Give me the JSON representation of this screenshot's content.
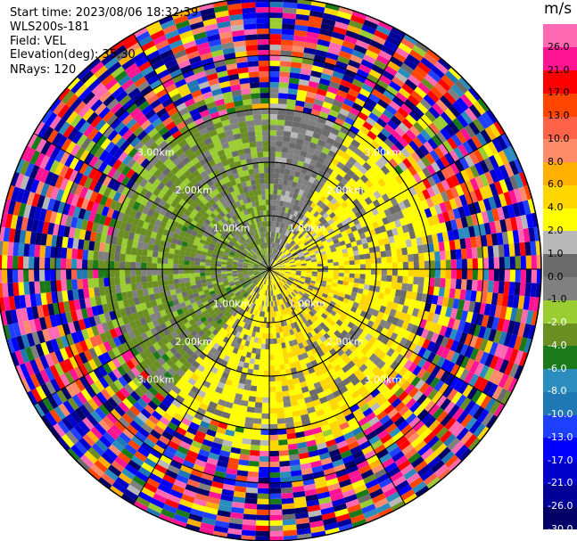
{
  "header": {
    "start_time": "Start time: 2023/08/06 18:32:39",
    "instrument": "WLS200s-181",
    "field": "Field: VEL",
    "elevation": "Elevation(deg): 35.30",
    "nrays": "NRays: 120"
  },
  "chart_data": {
    "type": "heatmap",
    "subtype": "ppi-polar",
    "field": "VEL",
    "units": "m/s",
    "nrays": 120,
    "elevation_deg": 35.3,
    "range_rings_km": [
      1.0,
      2.0,
      3.0
    ],
    "ring_labels": [
      "1.00km",
      "2.00km",
      "3.00km"
    ],
    "ring_label_angles_deg": [
      45,
      135,
      225,
      315
    ],
    "spokes_every_deg": 30,
    "colorbar": {
      "title": "m/s",
      "bounds": [
        -30.0,
        -26.0,
        -21.0,
        -17.0,
        -13.0,
        -10.0,
        -8.0,
        -6.0,
        -4.0,
        -2.0,
        -1.0,
        0.0,
        1.0,
        2.0,
        4.0,
        6.0,
        8.0,
        10.0,
        13.0,
        17.0,
        21.0,
        26.0,
        30.0
      ],
      "labels": [
        "-30.0",
        "-26.0",
        "-21.0",
        "-17.0",
        "-13.0",
        "-10.0",
        "-8.0",
        "-6.0",
        "-4.0",
        "-2.0",
        "-1.0",
        "0.0",
        "1.0",
        "2.0",
        "4.0",
        "6.0",
        "8.0",
        "10.0",
        "13.0",
        "17.0",
        "21.0",
        "26.0"
      ],
      "colors": [
        "#000066",
        "#000099",
        "#0000cc",
        "#0000ff",
        "#1f3fff",
        "#1f77b4",
        "#2b8cbe",
        "#1a7a1a",
        "#6b8e23",
        "#9acd32",
        "#808080",
        "#6b6b6b",
        "#b8b8b8",
        "#ffff00",
        "#ffd700",
        "#ffb000",
        "#ff8c69",
        "#ff6347",
        "#ff4500",
        "#ff0000",
        "#ff1493",
        "#ff69b4"
      ]
    },
    "regions": [
      {
        "from_deg": 300,
        "to_deg": 360,
        "value": -2.0
      },
      {
        "from_deg": 0,
        "to_deg": 30,
        "value": 0.0
      },
      {
        "from_deg": 30,
        "to_deg": 80,
        "value": 3.0
      },
      {
        "from_deg": 80,
        "to_deg": 180,
        "value": 4.0
      },
      {
        "from_deg": 180,
        "to_deg": 220,
        "value": 3.0
      },
      {
        "from_deg": 220,
        "to_deg": 300,
        "value": -2.5
      }
    ]
  }
}
